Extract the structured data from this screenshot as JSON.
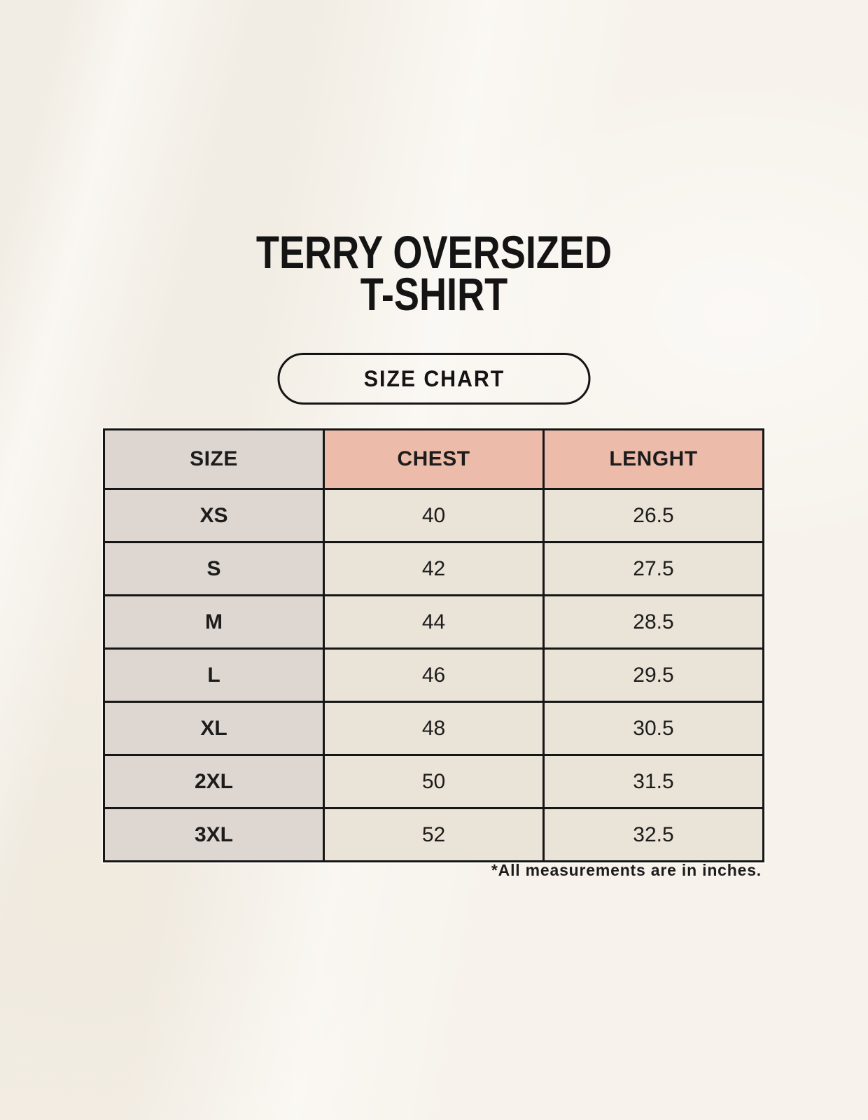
{
  "header": {
    "title_line1": "TERRY OVERSIZED",
    "title_line2": "T-SHIRT",
    "size_chart_badge": "SIZE CHART"
  },
  "footnote": "*All measurements are in inches.",
  "colors": {
    "page_bg": "#f7f3ec",
    "size_header_bg": "#ddd5cf",
    "measure_header_bg": "#edbbaa",
    "size_col_bg": "#ded6d0",
    "data_cell_bg": "#eae3d7",
    "table_border": "#161616",
    "text": "#1c1c1c"
  },
  "chart_data": {
    "type": "table",
    "title": "TERRY OVERSIZED T-SHIRT",
    "subtitle": "SIZE CHART",
    "units": "inches",
    "columns": [
      "SIZE",
      "CHEST",
      "LENGHT"
    ],
    "rows": [
      [
        "XS",
        "40",
        "26.5"
      ],
      [
        "S",
        "42",
        "27.5"
      ],
      [
        "M",
        "44",
        "28.5"
      ],
      [
        "L",
        "46",
        "29.5"
      ],
      [
        "XL",
        "48",
        "30.5"
      ],
      [
        "2XL",
        "50",
        "31.5"
      ],
      [
        "3XL",
        "52",
        "32.5"
      ]
    ],
    "note": "*All measurements are in inches."
  }
}
